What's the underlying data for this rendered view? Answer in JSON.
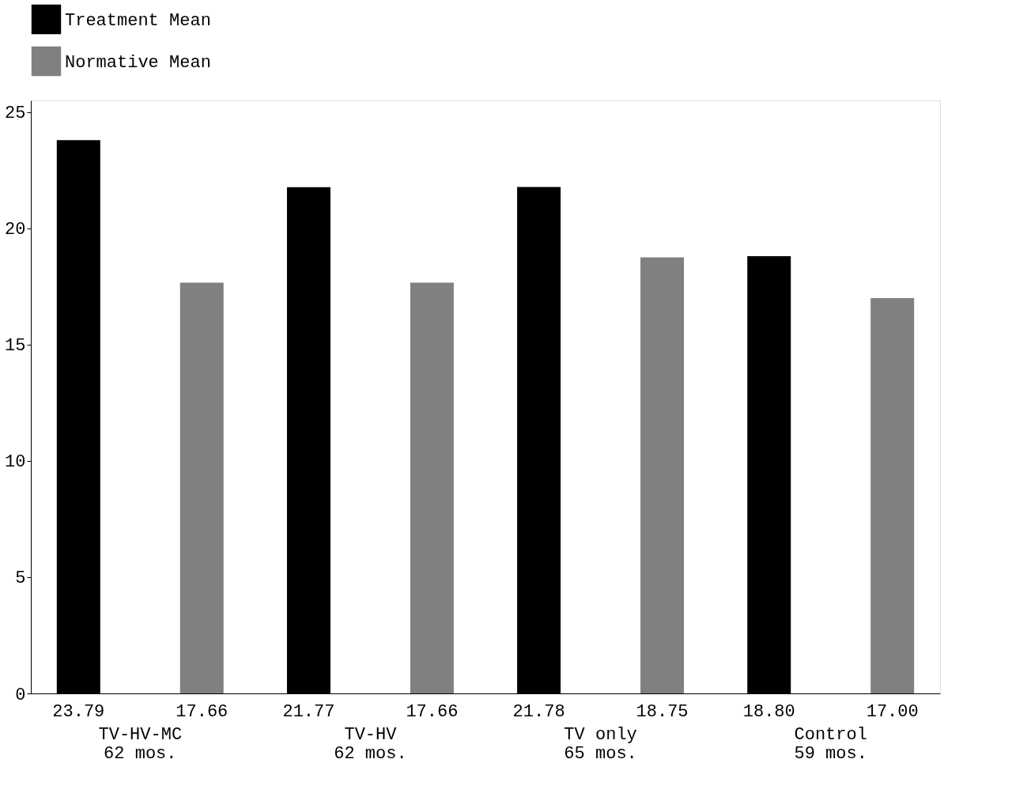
{
  "chart_data": {
    "type": "bar",
    "categories": [
      "TV-HV-MC\n62 mos.",
      "TV-HV\n62 mos.",
      "TV only\n65 mos.",
      "Control\n59 mos."
    ],
    "series": [
      {
        "name": "Treatment Mean",
        "color": "#000000",
        "values": [
          23.79,
          21.77,
          21.78,
          18.8
        ],
        "value_labels": [
          "23.79",
          "21.77",
          "21.78",
          "18.80"
        ]
      },
      {
        "name": "Normative Mean",
        "color": "#808080",
        "values": [
          17.66,
          17.66,
          18.75,
          17.0
        ],
        "value_labels": [
          "17.66",
          "17.66",
          "18.75",
          "17.00"
        ]
      }
    ],
    "ylim": [
      0,
      25.5
    ],
    "yticks": [
      0,
      5,
      10,
      15,
      20,
      25
    ],
    "grid": false,
    "legend": "top left"
  }
}
